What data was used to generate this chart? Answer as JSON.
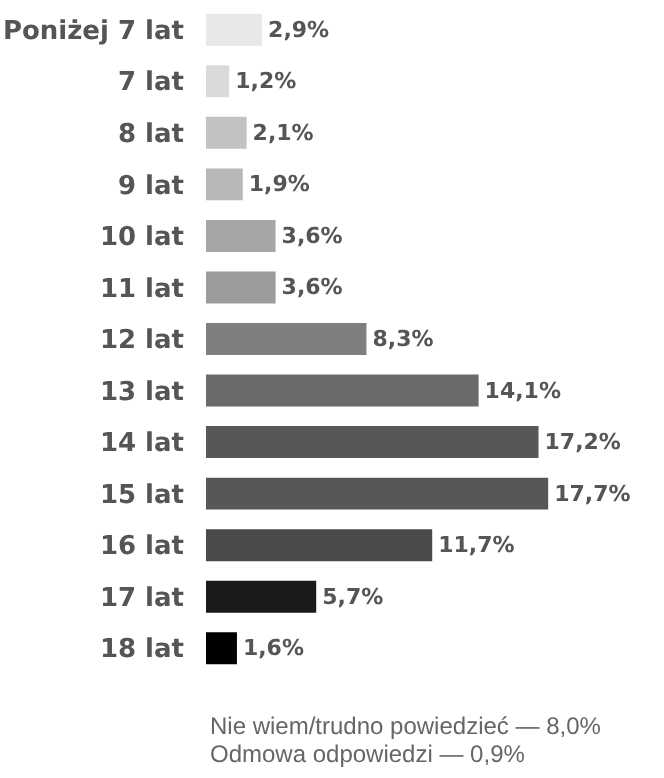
{
  "chart_data": {
    "type": "bar",
    "orientation": "horizontal",
    "categories": [
      "Poniżej 7 lat",
      "7 lat",
      "8 lat",
      "9 lat",
      "10 lat",
      "11 lat",
      "12 lat",
      "13 lat",
      "14 lat",
      "15 lat",
      "16 lat",
      "17 lat",
      "18 lat"
    ],
    "values": [
      2.9,
      1.2,
      2.1,
      1.9,
      3.6,
      3.6,
      8.3,
      14.1,
      17.2,
      17.7,
      11.7,
      5.7,
      1.6
    ],
    "value_labels": [
      "2,9%",
      "1,2%",
      "2,1%",
      "1,9%",
      "3,6%",
      "3,6%",
      "8,3%",
      "14,1%",
      "17,2%",
      "17,7%",
      "11,7%",
      "5,7%",
      "1,6%"
    ],
    "colors": [
      "#e8e8e8",
      "#dadada",
      "#c2c2c2",
      "#b8b8b8",
      "#a6a6a6",
      "#9c9c9c",
      "#7f7f7f",
      "#6b6b6b",
      "#575757",
      "#575757",
      "#4a4a4a",
      "#1a1a1a",
      "#000000"
    ],
    "annotations": [
      "Nie wiem/trudno powiedzieć — 8,0%",
      "Odmowa odpowiedzi — 0,9%"
    ]
  }
}
